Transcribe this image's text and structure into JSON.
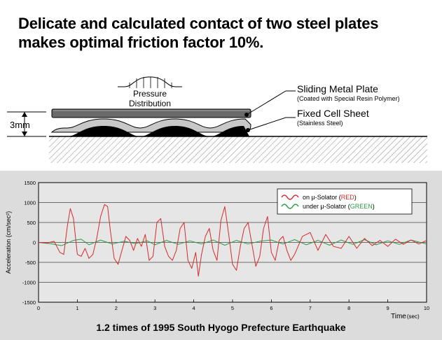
{
  "headline": {
    "line1": "Delicate and calculated contact of two steel plates",
    "line2": "makes optimal friction factor 10%."
  },
  "diagram": {
    "pressure_label_line1": "Pressure",
    "pressure_label_line2": "Distribution",
    "sliding_plate_title": "Sliding Metal Plate",
    "sliding_plate_note": "(Coated with Special Resin Polymer)",
    "fixed_sheet_title": "Fixed Cell Sheet",
    "fixed_sheet_note": "(Stainless Steel)",
    "thickness_label": "3mm"
  },
  "chart_data": {
    "type": "line",
    "title": "",
    "caption": "1.2 times of 1995 South Hyogo Prefecture Earthquake",
    "xlabel": "Time",
    "xlabel_unit": "(sec)",
    "ylabel": "Acceleration (cm/sec²)",
    "xlim": [
      0,
      10
    ],
    "ylim": [
      -1500,
      1500
    ],
    "xticks": [
      0,
      1,
      2,
      3,
      4,
      5,
      6,
      7,
      8,
      9,
      10
    ],
    "yticks": [
      -1500,
      -1000,
      -500,
      0,
      500,
      1000,
      1500
    ],
    "grid": true,
    "legend_position": "top-right",
    "series": [
      {
        "name_prefix": "on μ-Solator",
        "name_paren_open": " (",
        "name_color_word": "RED",
        "name_paren_close": ")",
        "color": "#d42a2a",
        "x": [
          0,
          0.2,
          0.4,
          0.55,
          0.65,
          0.75,
          0.82,
          0.9,
          1.0,
          1.1,
          1.2,
          1.3,
          1.4,
          1.5,
          1.6,
          1.7,
          1.78,
          1.85,
          1.95,
          2.05,
          2.15,
          2.25,
          2.35,
          2.45,
          2.55,
          2.65,
          2.75,
          2.85,
          2.95,
          3.05,
          3.15,
          3.25,
          3.35,
          3.45,
          3.55,
          3.65,
          3.75,
          3.85,
          3.95,
          4.05,
          4.12,
          4.2,
          4.3,
          4.4,
          4.5,
          4.6,
          4.7,
          4.8,
          4.9,
          5.0,
          5.1,
          5.2,
          5.3,
          5.4,
          5.5,
          5.6,
          5.7,
          5.8,
          5.9,
          6.0,
          6.1,
          6.2,
          6.3,
          6.4,
          6.5,
          6.6,
          6.8,
          7.0,
          7.2,
          7.4,
          7.6,
          7.8,
          8.0,
          8.2,
          8.4,
          8.6,
          8.8,
          9.0,
          9.2,
          9.4,
          9.6,
          9.8,
          10.0
        ],
        "y": [
          0,
          -20,
          30,
          -250,
          -300,
          450,
          850,
          600,
          -300,
          -350,
          -150,
          -400,
          -300,
          100,
          650,
          950,
          900,
          300,
          -400,
          -550,
          -200,
          150,
          50,
          -200,
          100,
          -100,
          200,
          -450,
          -350,
          500,
          600,
          -100,
          -350,
          -450,
          -200,
          350,
          500,
          -450,
          -650,
          -250,
          -850,
          -300,
          150,
          350,
          -200,
          -450,
          550,
          900,
          200,
          -550,
          -700,
          -100,
          350,
          500,
          -50,
          -600,
          -350,
          350,
          650,
          -250,
          -450,
          50,
          150,
          -200,
          -450,
          -300,
          150,
          250,
          -200,
          200,
          -100,
          -150,
          150,
          -150,
          100,
          -80,
          50,
          -100,
          80,
          -50,
          60,
          -40,
          50
        ]
      },
      {
        "name_prefix": "under μ-Solator",
        "name_paren_open": " (",
        "name_color_word": "GREEN",
        "name_paren_close": ")",
        "color": "#2a9a46",
        "x": [
          0,
          0.3,
          0.6,
          0.9,
          1.1,
          1.3,
          1.6,
          1.9,
          2.2,
          2.5,
          2.8,
          3.0,
          3.3,
          3.6,
          3.9,
          4.2,
          4.5,
          4.8,
          5.1,
          5.4,
          5.7,
          6.0,
          6.3,
          6.6,
          6.9,
          7.2,
          7.5,
          7.8,
          8.1,
          8.4,
          8.7,
          9.0,
          9.3,
          9.6,
          10.0
        ],
        "y": [
          0,
          -30,
          -80,
          50,
          80,
          -60,
          60,
          -40,
          30,
          -30,
          40,
          -60,
          50,
          -50,
          40,
          -40,
          60,
          -70,
          50,
          -40,
          30,
          60,
          -40,
          70,
          -60,
          50,
          -70,
          60,
          -50,
          70,
          -60,
          40,
          -50,
          60,
          -40
        ]
      }
    ]
  }
}
